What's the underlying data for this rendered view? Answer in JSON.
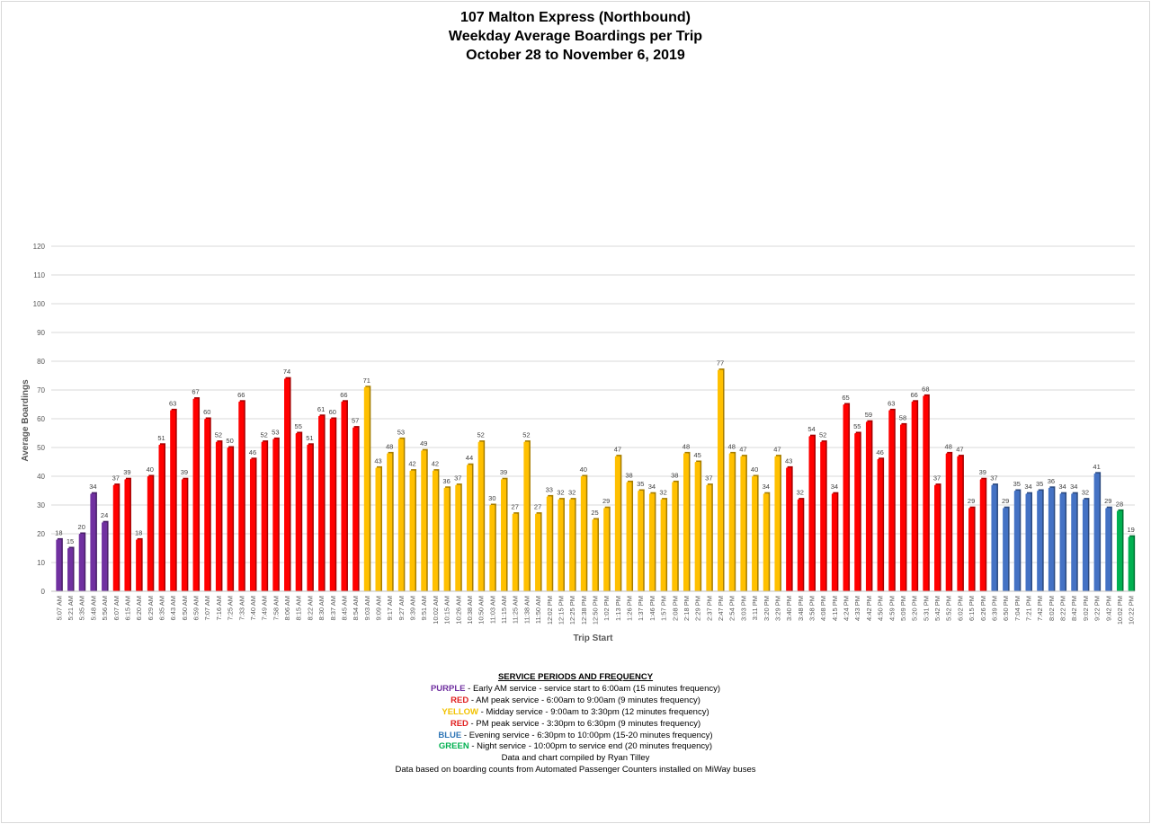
{
  "chart_data": {
    "type": "bar",
    "title": "107 Malton Express (Northbound)",
    "subtitle": [
      "Weekday Average Boardings per Trip",
      "October 28 to November 6, 2019"
    ],
    "xlabel": "Trip Start",
    "ylabel": "Average Boardings",
    "ylim": [
      0,
      120
    ],
    "yticks": [
      0,
      10,
      20,
      30,
      40,
      50,
      60,
      70,
      80,
      90,
      100,
      110,
      120
    ],
    "grid": true,
    "data_labels": true,
    "colors": {
      "purple": "#7030A0",
      "red": "#FF0000",
      "yellow": "#FFC000",
      "blue": "#4472C4",
      "green": "#00B050"
    },
    "categories": [
      "5:07 AM",
      "5:21 AM",
      "5:35 AM",
      "5:48 AM",
      "5:56 AM",
      "6:07 AM",
      "6:15 AM",
      "6:20 AM",
      "6:29 AM",
      "6:35 AM",
      "6:43 AM",
      "6:50 AM",
      "6:59 AM",
      "7:07 AM",
      "7:16 AM",
      "7:25 AM",
      "7:33 AM",
      "7:40 AM",
      "7:49 AM",
      "7:58 AM",
      "8:06 AM",
      "8:15 AM",
      "8:22 AM",
      "8:30 AM",
      "8:37 AM",
      "8:45 AM",
      "8:54 AM",
      "9:03 AM",
      "9:09 AM",
      "9:17 AM",
      "9:27 AM",
      "9:39 AM",
      "9:51 AM",
      "10:02 AM",
      "10:15 AM",
      "10:26 AM",
      "10:38 AM",
      "10:50 AM",
      "11:03 AM",
      "11:15 AM",
      "11:25 AM",
      "11:38 AM",
      "11:50 AM",
      "12:02 PM",
      "12:15 PM",
      "12:25 PM",
      "12:38 PM",
      "12:50 PM",
      "1:02 PM",
      "1:13 PM",
      "1:26 PM",
      "1:37 PM",
      "1:46 PM",
      "1:57 PM",
      "2:08 PM",
      "2:18 PM",
      "2:29 PM",
      "2:37 PM",
      "2:47 PM",
      "2:54 PM",
      "3:03 PM",
      "3:11 PM",
      "3:20 PM",
      "3:29 PM",
      "3:40 PM",
      "3:48 PM",
      "3:58 PM",
      "4:08 PM",
      "4:15 PM",
      "4:24 PM",
      "4:33 PM",
      "4:42 PM",
      "4:50 PM",
      "4:59 PM",
      "5:09 PM",
      "5:20 PM",
      "5:31 PM",
      "5:42 PM",
      "5:52 PM",
      "6:02 PM",
      "6:15 PM",
      "6:26 PM",
      "6:39 PM",
      "6:50 PM",
      "7:04 PM",
      "7:21 PM",
      "7:42 PM",
      "8:02 PM",
      "8:22 PM",
      "8:42 PM",
      "9:02 PM",
      "9:22 PM",
      "9:42 PM",
      "10:02 PM",
      "10:22 PM"
    ],
    "values": [
      18,
      15,
      20,
      34,
      24,
      37,
      39,
      18,
      40,
      51,
      63,
      39,
      67,
      60,
      52,
      50,
      66,
      46,
      52,
      53,
      74,
      55,
      51,
      61,
      60,
      66,
      57,
      71,
      43,
      48,
      53,
      42,
      49,
      42,
      36,
      37,
      44,
      52,
      30,
      39,
      27,
      52,
      27,
      33,
      32,
      32,
      40,
      25,
      29,
      47,
      38,
      35,
      34,
      32,
      38,
      48,
      45,
      37,
      77,
      48,
      47,
      40,
      34,
      47,
      43,
      32,
      54,
      52,
      34,
      65,
      55,
      59,
      46,
      63,
      58,
      66,
      68,
      37,
      48,
      47,
      29,
      39,
      37,
      29,
      35,
      34,
      35,
      36,
      34,
      34,
      32,
      41,
      29,
      28,
      19
    ],
    "period_groups": [
      {
        "color": "purple",
        "count": 5
      },
      {
        "color": "red",
        "count": 22
      },
      {
        "color": "yellow",
        "count": 37
      },
      {
        "color": "red",
        "count": 18
      },
      {
        "color": "blue",
        "count": 11
      },
      {
        "color": "green",
        "count": 2
      }
    ]
  },
  "legend": {
    "heading": "SERVICE PERIODS AND FREQUENCY",
    "items": [
      {
        "key": "PURPLE",
        "color": "#7030A0",
        "text": " - Early AM service - service start to 6:00am (15 minutes frequency)"
      },
      {
        "key": "RED",
        "color": "#E02020",
        "text": " - AM peak service - 6:00am to 9:00am (9 minutes frequency)"
      },
      {
        "key": "YELLOW",
        "color": "#F2C200",
        "text": " - Midday service - 9:00am to 3:30pm (12 minutes frequency)"
      },
      {
        "key": "RED",
        "color": "#E02020",
        "text": " - PM peak service - 3:30pm to 6:30pm (9 minutes frequency)"
      },
      {
        "key": "BLUE",
        "color": "#2E75B6",
        "text": " - Evening service - 6:30pm to 10:00pm (15-20 minutes frequency)"
      },
      {
        "key": "GREEN",
        "color": "#00B050",
        "text": " - Night service - 10:00pm to service end (20 minutes frequency)"
      }
    ],
    "credit": "Data and chart compiled by Ryan Tilley",
    "source": "Data based on boarding counts from Automated Passenger Counters installed on MiWay buses"
  }
}
